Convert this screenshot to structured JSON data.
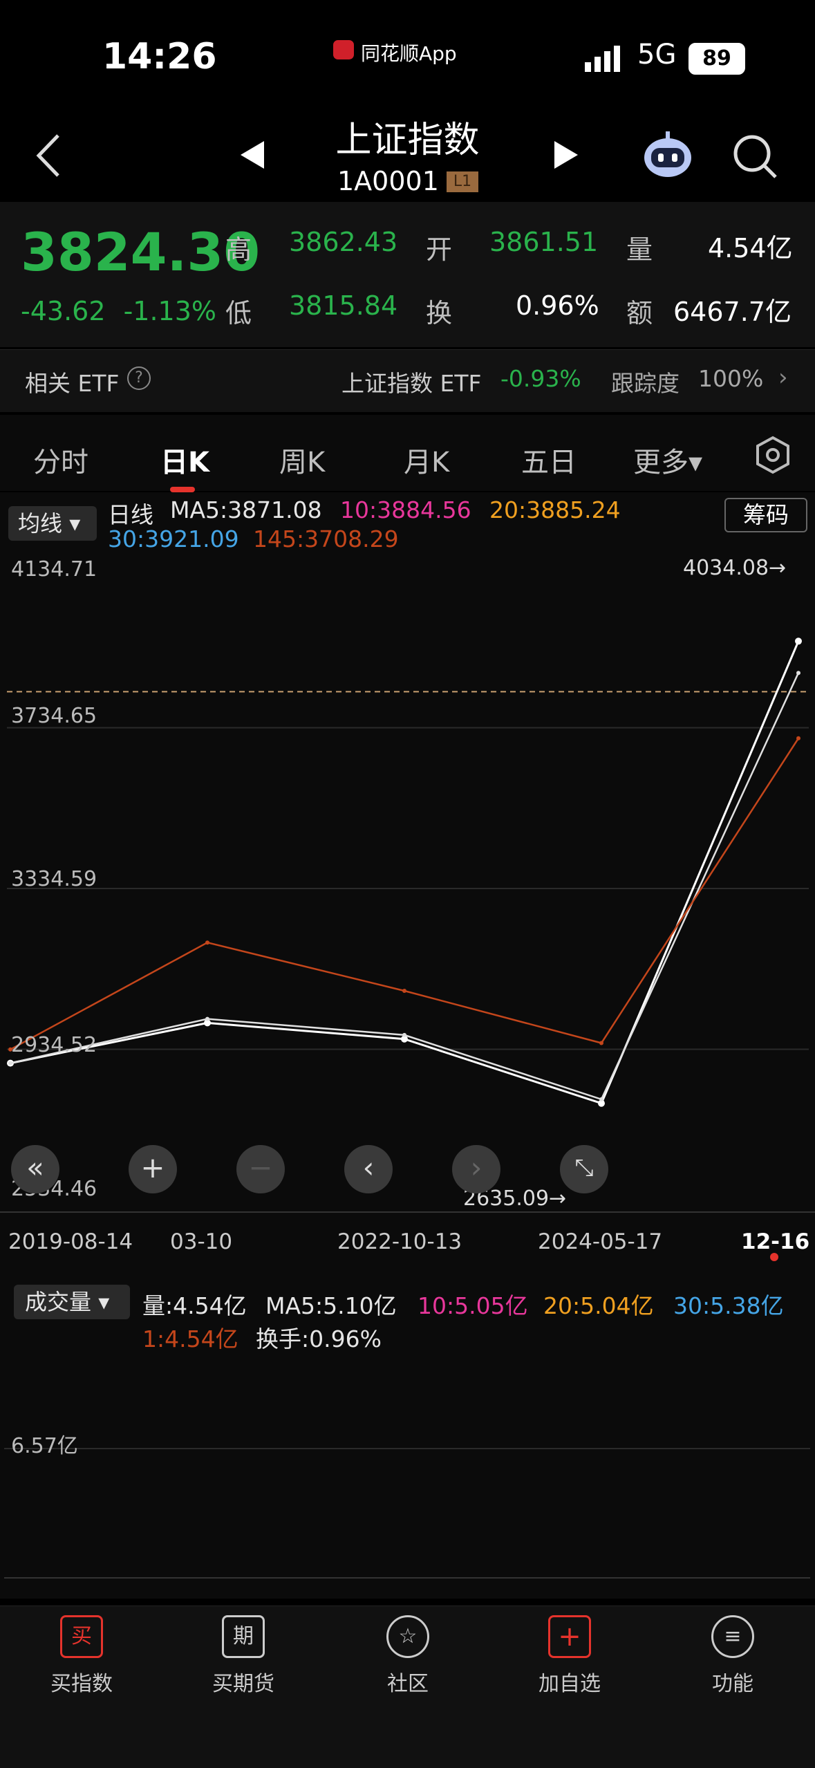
{
  "status_bar": {
    "time": "14:26",
    "app": "同花顺App",
    "network": "5G",
    "battery": "89"
  },
  "header": {
    "title": "上证指数",
    "code": "1A0001",
    "level_badge": "L1"
  },
  "quote": {
    "price": "3824.30",
    "change": "-43.62",
    "change_pct": "-1.13%",
    "high_label": "高",
    "high": "3862.43",
    "open_label": "开",
    "open": "3861.51",
    "volume_label": "量",
    "volume": "4.54亿",
    "low_label": "低",
    "low": "3815.84",
    "turnover_label": "换",
    "turnover": "0.96%",
    "amount_label": "额",
    "amount": "6467.7亿"
  },
  "etf": {
    "label": "相关 ETF",
    "name": "上证指数 ETF",
    "change": "-0.93%",
    "track_label": "跟踪度",
    "track": "100%"
  },
  "tabs": [
    {
      "label": "分时"
    },
    {
      "label": "日K"
    },
    {
      "label": "周K"
    },
    {
      "label": "月K"
    },
    {
      "label": "五日"
    },
    {
      "label": "更多▾"
    }
  ],
  "ma_legend": {
    "selector": "均线",
    "period": "日线",
    "ma5": "MA5:3871.08",
    "ma10": "10:3884.56",
    "ma20": "20:3885.24",
    "ma30": "30:3921.09",
    "ma145": "145:3708.29",
    "chip_button": "筹码"
  },
  "price_axis": [
    "4134.71",
    "3734.65",
    "3334.59",
    "2934.52",
    "2534.46"
  ],
  "markers": {
    "high": "4034.08→",
    "low": "2635.09→"
  },
  "date_axis": [
    "2019-08-14",
    "03-10",
    "2022-10-13",
    "2024-05-17",
    "12-16"
  ],
  "volume_legend": {
    "selector": "成交量",
    "vol": "量:4.54亿",
    "ma5": "MA5:5.10亿",
    "ma10": "10:5.05亿",
    "ma20": "20:5.04亿",
    "ma30": "30:5.38亿",
    "ma1": "1:4.54亿",
    "turnover": "换手:0.96%"
  },
  "volume_axis": "6.57亿",
  "bottom_nav": [
    {
      "label": "买指数",
      "icon": "买"
    },
    {
      "label": "买期货",
      "icon": "期"
    },
    {
      "label": "社区",
      "icon": "☆"
    },
    {
      "label": "加自选",
      "icon": "+"
    },
    {
      "label": "功能",
      "icon": "≡"
    }
  ],
  "chart_data": {
    "type": "line",
    "x": [
      "2019-08-14",
      "2020-03-10",
      "2022-10-13",
      "2024-05-17",
      "2025-12-16"
    ],
    "series": [
      {
        "name": "日线",
        "values": [
          2900,
          3000,
          2960,
          2800,
          3950
        ]
      },
      {
        "name": "MA5:3871.08",
        "values": [
          2900,
          3010,
          2970,
          2810,
          3871.08
        ]
      },
      {
        "name": "145:3708.29",
        "values": [
          2934,
          3200,
          3080,
          2950,
          3708.29
        ]
      }
    ],
    "ylim": [
      2534.46,
      4134.71
    ],
    "colors": {
      "price": "#ffffff",
      "ma5": "#e0e0e0",
      "ma10": "#e8379b",
      "ma20": "#f0a020",
      "ma30": "#45a5e6",
      "ma145": "#c4461b",
      "up": "#e5332c",
      "down": "#2ab34c"
    }
  }
}
